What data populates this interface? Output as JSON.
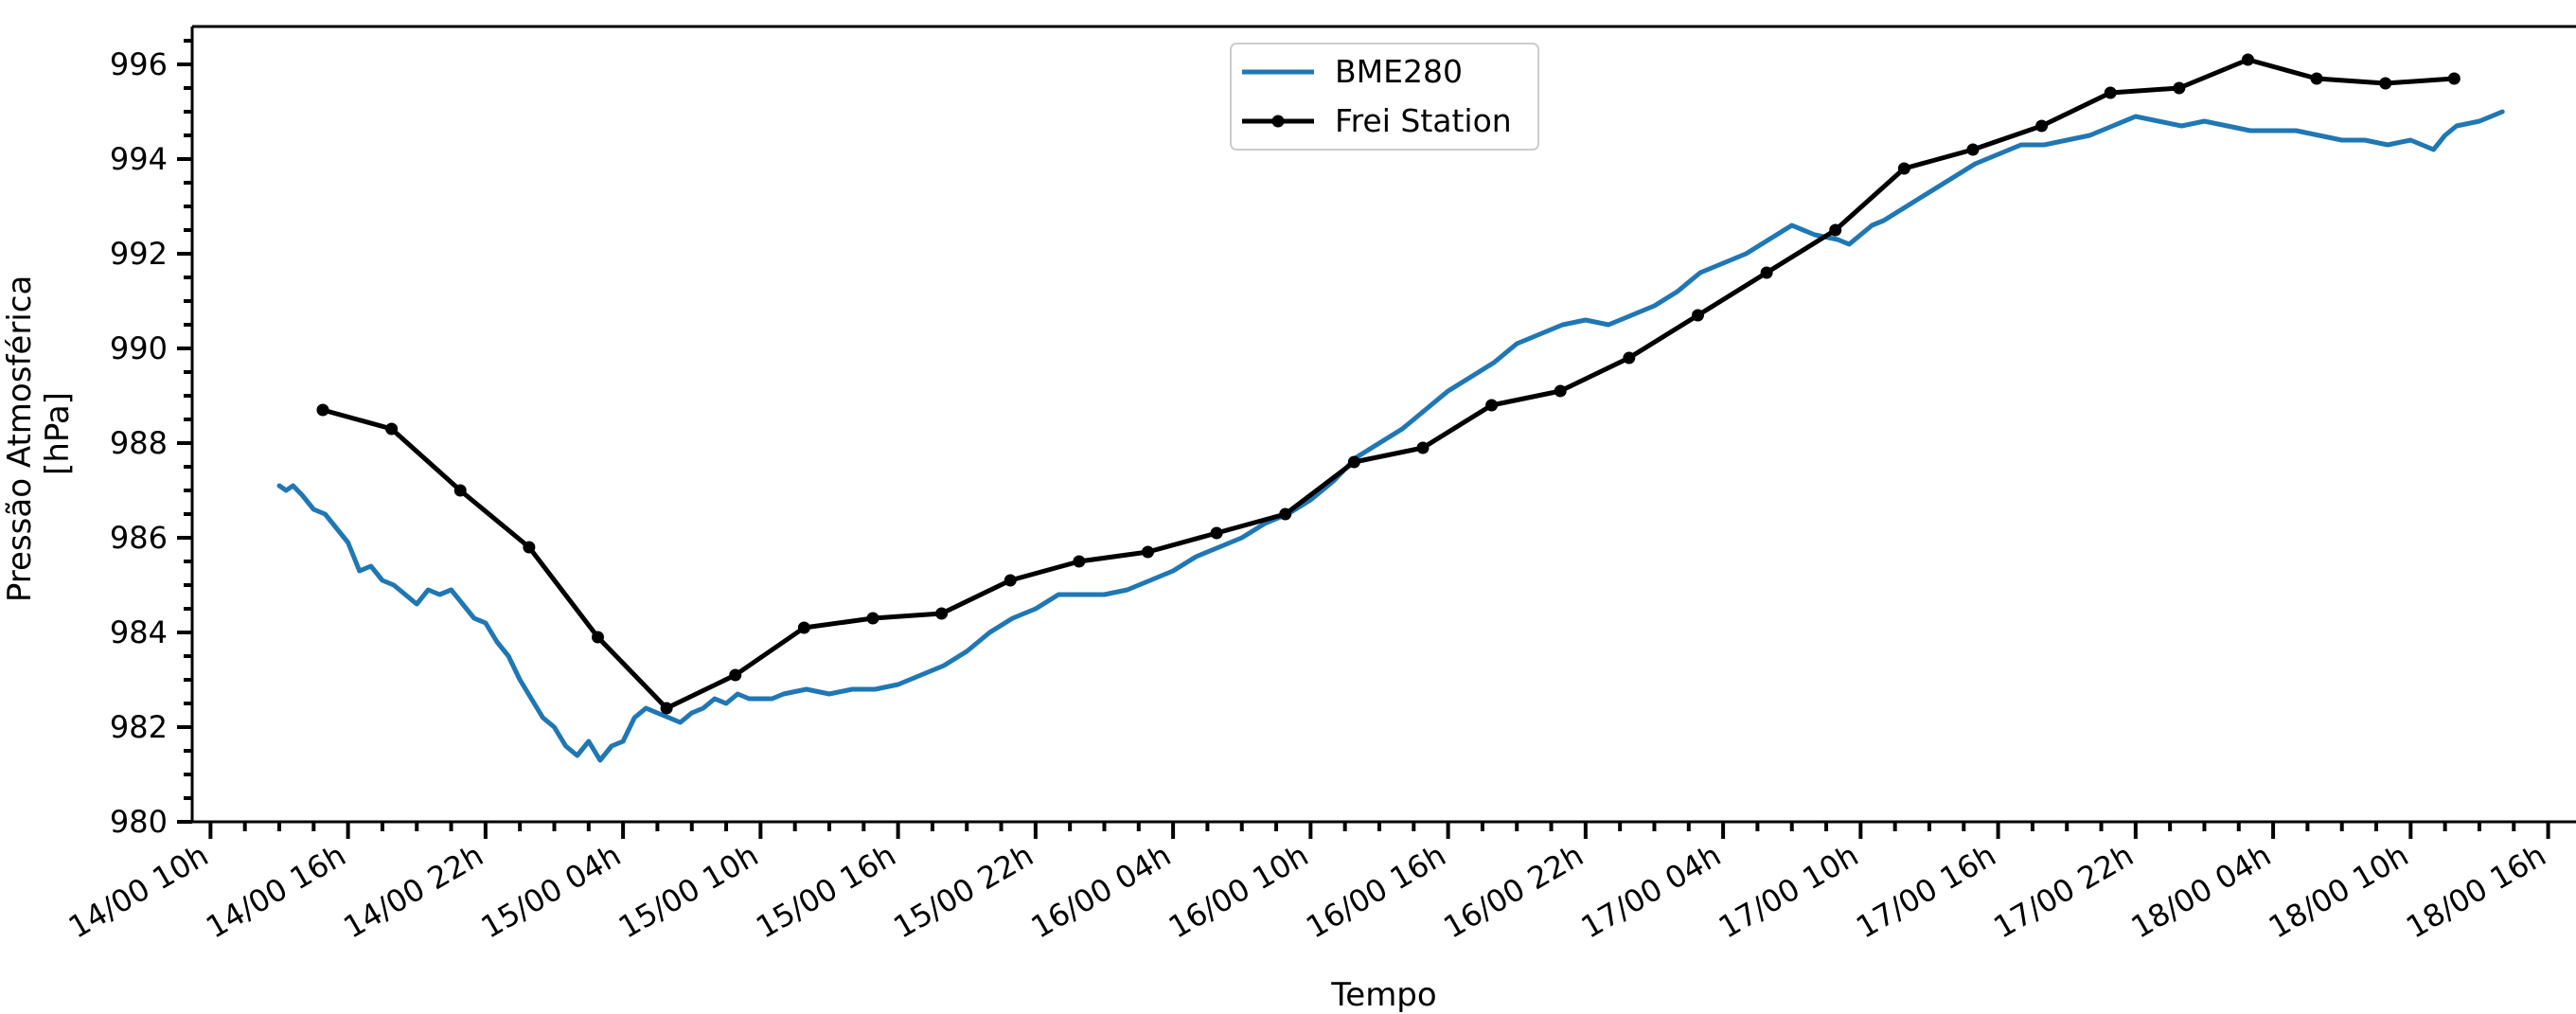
{
  "chart_data": {
    "type": "line",
    "title": "",
    "xlabel": "Tempo",
    "ylabel_lines": [
      "Pressão Atmosférica",
      "[hPa]"
    ],
    "x_unit": "hours",
    "xlim": [
      -0.8,
      104
    ],
    "ylim": [
      980,
      996.8
    ],
    "y_ticks": [
      980,
      982,
      984,
      986,
      988,
      990,
      992,
      994,
      996
    ],
    "y_minor_step": 0.5,
    "x_minor_step": 1.5,
    "x_ticks": [
      {
        "x": 0,
        "label": "14/00 10h"
      },
      {
        "x": 6,
        "label": "14/00 16h"
      },
      {
        "x": 12,
        "label": "14/00 22h"
      },
      {
        "x": 18,
        "label": "15/00 04h"
      },
      {
        "x": 24,
        "label": "15/00 10h"
      },
      {
        "x": 30,
        "label": "15/00 16h"
      },
      {
        "x": 36,
        "label": "15/00 22h"
      },
      {
        "x": 42,
        "label": "16/00 04h"
      },
      {
        "x": 48,
        "label": "16/00 10h"
      },
      {
        "x": 54,
        "label": "16/00 16h"
      },
      {
        "x": 60,
        "label": "16/00 22h"
      },
      {
        "x": 66,
        "label": "17/00 04h"
      },
      {
        "x": 72,
        "label": "17/00 10h"
      },
      {
        "x": 78,
        "label": "17/00 16h"
      },
      {
        "x": 84,
        "label": "17/00 22h"
      },
      {
        "x": 90,
        "label": "18/00 04h"
      },
      {
        "x": 96,
        "label": "18/00 10h"
      },
      {
        "x": 102,
        "label": "18/00 16h"
      }
    ],
    "legend": "top-center",
    "series": [
      {
        "name": "BME280",
        "color": "#1f77b4",
        "markers": false,
        "x": [
          3.0,
          3.3,
          3.6,
          4.0,
          4.5,
          5.0,
          5.5,
          6.0,
          6.5,
          7.0,
          7.5,
          8.0,
          8.5,
          9.0,
          9.5,
          10.0,
          10.5,
          11.0,
          11.5,
          12.0,
          12.5,
          13.0,
          13.5,
          14.0,
          14.5,
          15.0,
          15.5,
          16.0,
          16.5,
          17.0,
          17.5,
          18.0,
          18.5,
          19.0,
          19.5,
          20.0,
          20.5,
          21.0,
          21.5,
          22.0,
          22.5,
          23.0,
          23.5,
          24.0,
          24.5,
          25.0,
          26.0,
          27.0,
          28.0,
          29.0,
          30.0,
          31.0,
          32.0,
          33.0,
          34.0,
          35.0,
          36.0,
          37.0,
          38.0,
          39.0,
          40.0,
          41.0,
          42.0,
          43.0,
          44.0,
          45.0,
          46.0,
          46.5,
          47.0,
          48.0,
          49.0,
          50.0,
          51.0,
          52.0,
          53.0,
          54.0,
          55.0,
          56.0,
          57.0,
          58.0,
          59.0,
          60.0,
          61.0,
          62.0,
          63.0,
          64.0,
          65.0,
          66.0,
          67.0,
          68.0,
          69.0,
          70.0,
          71.0,
          71.5,
          72.0,
          72.5,
          73.0,
          74.0,
          75.0,
          76.0,
          77.0,
          78.0,
          79.0,
          80.0,
          81.0,
          82.0,
          83.0,
          84.0,
          85.0,
          86.0,
          87.0,
          88.0,
          89.0,
          90.0,
          91.0,
          92.0,
          93.0,
          94.0,
          95.0,
          96.0,
          97.0,
          97.5,
          98.0,
          99.0,
          100.0
        ],
        "y": [
          987.1,
          987.0,
          987.1,
          986.9,
          986.6,
          986.5,
          986.2,
          985.9,
          985.3,
          985.4,
          985.1,
          985.0,
          984.8,
          984.6,
          984.9,
          984.8,
          984.9,
          984.6,
          984.3,
          984.2,
          983.8,
          983.5,
          983.0,
          982.6,
          982.2,
          982.0,
          981.6,
          981.4,
          981.7,
          981.3,
          981.6,
          981.7,
          982.2,
          982.4,
          982.3,
          982.2,
          982.1,
          982.3,
          982.4,
          982.6,
          982.5,
          982.7,
          982.6,
          982.6,
          982.6,
          982.7,
          982.8,
          982.7,
          982.8,
          982.8,
          982.9,
          983.1,
          983.3,
          983.6,
          984.0,
          984.3,
          984.5,
          984.8,
          984.8,
          984.8,
          984.9,
          985.1,
          985.3,
          985.6,
          985.8,
          986.0,
          986.3,
          986.4,
          986.5,
          986.8,
          987.2,
          987.7,
          988.0,
          988.3,
          988.7,
          989.1,
          989.4,
          989.7,
          990.1,
          990.3,
          990.5,
          990.6,
          990.5,
          990.7,
          990.9,
          991.2,
          991.6,
          991.8,
          992.0,
          992.3,
          992.6,
          992.4,
          992.3,
          992.2,
          992.4,
          992.6,
          992.7,
          993.0,
          993.3,
          993.6,
          993.9,
          994.1,
          994.3,
          994.3,
          994.4,
          994.5,
          994.7,
          994.9,
          994.8,
          994.7,
          994.8,
          994.7,
          994.6,
          994.6,
          994.6,
          994.5,
          994.4,
          994.4,
          994.3,
          994.4,
          994.2,
          994.5,
          994.7,
          994.8,
          995.0
        ]
      },
      {
        "name": "Frei Station",
        "color": "#000000",
        "markers": true,
        "x": [
          4.9,
          7.9,
          10.9,
          13.9,
          16.9,
          19.9,
          22.9,
          25.9,
          28.9,
          31.9,
          34.9,
          37.9,
          40.9,
          43.9,
          46.9,
          49.9,
          52.9,
          55.9,
          58.9,
          61.9,
          64.9,
          67.9,
          70.9,
          73.9,
          76.9,
          79.9,
          82.9,
          85.9,
          88.9,
          91.9,
          94.9,
          97.9
        ],
        "y": [
          988.7,
          988.3,
          987.0,
          985.8,
          983.9,
          982.4,
          983.1,
          984.1,
          984.3,
          984.4,
          985.1,
          985.5,
          985.7,
          986.1,
          986.5,
          987.6,
          987.9,
          988.8,
          989.1,
          989.8,
          990.7,
          991.6,
          992.5,
          993.8,
          994.2,
          994.7,
          995.4,
          995.5,
          996.1,
          995.7,
          995.6,
          995.7
        ]
      }
    ]
  }
}
